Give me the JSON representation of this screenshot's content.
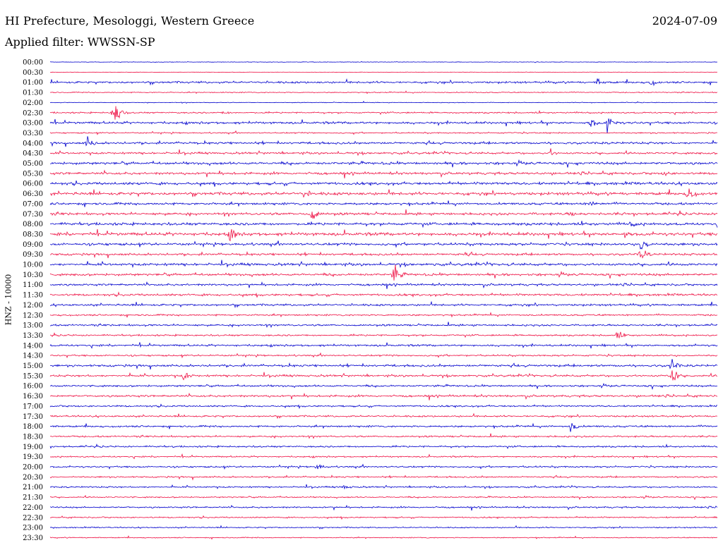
{
  "header": {
    "station": "HI Prefecture, Mesologgi, Western Greece",
    "filter": "Applied filter: WWSSN-SP",
    "date": "2024-07-09"
  },
  "chart_data": {
    "type": "line",
    "title": "HI Prefecture, Mesologgi, Western Greece",
    "subtitle": "Applied filter: WWSSN-SP",
    "ylabel": "HNZ - 10000",
    "xlabel": "",
    "grid": false,
    "rows": [
      "00:00",
      "00:30",
      "01:00",
      "01:30",
      "02:00",
      "02:30",
      "03:00",
      "03:30",
      "04:00",
      "04:30",
      "05:00",
      "05:30",
      "06:00",
      "06:30",
      "07:00",
      "07:30",
      "08:00",
      "08:30",
      "09:00",
      "09:30",
      "10:00",
      "10:30",
      "11:00",
      "11:30",
      "12:00",
      "12:30",
      "13:00",
      "13:30",
      "14:00",
      "14:30",
      "15:00",
      "15:30",
      "16:00",
      "16:30",
      "17:00",
      "17:30",
      "18:00",
      "18:30",
      "19:00",
      "19:30",
      "20:00",
      "20:30",
      "21:00",
      "21:30",
      "22:00",
      "22:30",
      "23:00",
      "23:30"
    ],
    "colors": [
      "#0000cc",
      "#ee1144"
    ],
    "noise_level": [
      0.3,
      0.2,
      1.2,
      0.6,
      0.4,
      0.9,
      1.4,
      0.8,
      1.3,
      1.2,
      1.5,
      1.4,
      1.6,
      1.7,
      1.4,
      1.5,
      1.6,
      1.9,
      1.5,
      1.3,
      1.5,
      1.4,
      1.2,
      1.3,
      1.2,
      1.0,
      1.1,
      1.0,
      1.2,
      1.0,
      1.3,
      1.2,
      1.1,
      1.2,
      1.0,
      1.0,
      1.1,
      1.0,
      1.0,
      0.9,
      1.0,
      0.9,
      0.9,
      0.8,
      0.9,
      0.8,
      0.7,
      0.6
    ],
    "events": [
      {
        "row": 2,
        "x": 0.82,
        "amp": 6
      },
      {
        "row": 2,
        "x": 0.9,
        "amp": 7
      },
      {
        "row": 5,
        "x": 0.095,
        "amp": 20
      },
      {
        "row": 5,
        "x": 0.26,
        "amp": 4
      },
      {
        "row": 6,
        "x": 0.81,
        "amp": 8
      },
      {
        "row": 6,
        "x": 0.835,
        "amp": 15
      },
      {
        "row": 8,
        "x": 0.055,
        "amp": 10
      },
      {
        "row": 9,
        "x": 0.75,
        "amp": 6
      },
      {
        "row": 11,
        "x": 0.92,
        "amp": 6
      },
      {
        "row": 13,
        "x": 0.38,
        "amp": 8
      },
      {
        "row": 13,
        "x": 0.955,
        "amp": 16
      },
      {
        "row": 14,
        "x": 0.81,
        "amp": 7
      },
      {
        "row": 15,
        "x": 0.39,
        "amp": 14
      },
      {
        "row": 15,
        "x": 0.78,
        "amp": 6
      },
      {
        "row": 16,
        "x": 0.87,
        "amp": 6
      },
      {
        "row": 17,
        "x": 0.27,
        "amp": 12
      },
      {
        "row": 17,
        "x": 0.86,
        "amp": 7
      },
      {
        "row": 18,
        "x": 0.885,
        "amp": 14
      },
      {
        "row": 19,
        "x": 0.885,
        "amp": 12
      },
      {
        "row": 19,
        "x": 0.62,
        "amp": 5
      },
      {
        "row": 21,
        "x": 0.515,
        "amp": 14
      },
      {
        "row": 27,
        "x": 0.85,
        "amp": 8
      },
      {
        "row": 30,
        "x": 0.93,
        "amp": 10
      },
      {
        "row": 31,
        "x": 0.2,
        "amp": 8
      },
      {
        "row": 31,
        "x": 0.93,
        "amp": 14
      },
      {
        "row": 36,
        "x": 0.78,
        "amp": 8
      },
      {
        "row": 40,
        "x": 0.4,
        "amp": 6
      },
      {
        "row": 42,
        "x": 0.44,
        "amp": 5
      }
    ]
  }
}
